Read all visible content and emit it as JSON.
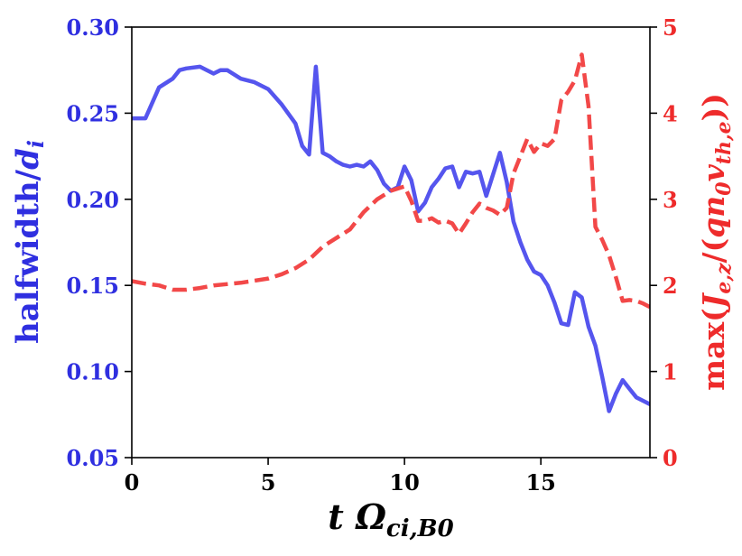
{
  "chart_data": {
    "type": "line",
    "xlabel": "t Ω_ci,B0",
    "ylabel_left": "halfwidth / d_i",
    "ylabel_right": "max(J_e,z / (q n_0 v_th,e))",
    "xlim": [
      0,
      19
    ],
    "ylim_left": [
      0.05,
      0.3
    ],
    "ylim_right": [
      0,
      5
    ],
    "x_ticks": [
      "0",
      "5",
      "10",
      "15"
    ],
    "y_ticks_left": [
      "0.05",
      "0.10",
      "0.15",
      "0.20",
      "0.25",
      "0.30"
    ],
    "y_ticks_right": [
      "0",
      "1",
      "2",
      "3",
      "4",
      "5"
    ],
    "grid": false,
    "series": [
      {
        "axis": "left",
        "color": "#5555ee",
        "style": "solid",
        "x": [
          0.0,
          0.5,
          1.0,
          1.5,
          1.75,
          2.0,
          2.5,
          2.75,
          3.0,
          3.25,
          3.5,
          4.0,
          4.5,
          5.0,
          5.5,
          6.0,
          6.25,
          6.5,
          6.75,
          7.0,
          7.25,
          7.5,
          7.75,
          8.0,
          8.25,
          8.5,
          8.75,
          9.0,
          9.25,
          9.5,
          9.75,
          10.0,
          10.25,
          10.5,
          10.75,
          11.0,
          11.25,
          11.5,
          11.75,
          12.0,
          12.25,
          12.5,
          12.75,
          13.0,
          13.5,
          13.75,
          14.0,
          14.25,
          14.5,
          14.75,
          15.0,
          15.25,
          15.5,
          15.75,
          16.0,
          16.25,
          16.5,
          16.75,
          17.0,
          17.25,
          17.5,
          17.75,
          18.0,
          18.25,
          18.5,
          19.0
        ],
        "y": [
          0.247,
          0.247,
          0.265,
          0.27,
          0.275,
          0.276,
          0.277,
          0.275,
          0.273,
          0.275,
          0.275,
          0.27,
          0.268,
          0.264,
          0.255,
          0.244,
          0.231,
          0.226,
          0.277,
          0.227,
          0.225,
          0.222,
          0.22,
          0.219,
          0.22,
          0.219,
          0.222,
          0.217,
          0.209,
          0.205,
          0.207,
          0.219,
          0.211,
          0.193,
          0.198,
          0.207,
          0.212,
          0.218,
          0.219,
          0.207,
          0.216,
          0.215,
          0.216,
          0.202,
          0.227,
          0.21,
          0.187,
          0.175,
          0.165,
          0.158,
          0.156,
          0.15,
          0.14,
          0.128,
          0.127,
          0.146,
          0.143,
          0.126,
          0.115,
          0.097,
          0.077,
          0.087,
          0.095,
          0.09,
          0.085,
          0.081
        ]
      },
      {
        "axis": "right",
        "color": "#f24848",
        "style": "dashed",
        "x": [
          0.0,
          0.5,
          1.0,
          1.5,
          2.0,
          2.5,
          3.0,
          4.0,
          5.0,
          5.5,
          6.0,
          6.5,
          7.0,
          7.5,
          8.0,
          8.5,
          9.0,
          9.5,
          10.0,
          10.25,
          10.5,
          10.75,
          11.0,
          11.25,
          11.5,
          11.75,
          12.0,
          12.25,
          12.5,
          12.75,
          13.0,
          13.25,
          13.5,
          13.75,
          14.0,
          14.25,
          14.5,
          14.75,
          15.0,
          15.25,
          15.5,
          15.75,
          16.0,
          16.25,
          16.5,
          16.75,
          17.0,
          17.25,
          17.5,
          17.75,
          18.0,
          18.25,
          18.5,
          18.75,
          19.0
        ],
        "y": [
          2.05,
          2.02,
          2.0,
          1.95,
          1.95,
          1.97,
          2.0,
          2.03,
          2.08,
          2.13,
          2.2,
          2.3,
          2.45,
          2.55,
          2.65,
          2.85,
          3.0,
          3.1,
          3.15,
          2.98,
          2.75,
          2.75,
          2.78,
          2.73,
          2.75,
          2.72,
          2.6,
          2.72,
          2.85,
          2.95,
          2.9,
          2.87,
          2.82,
          2.9,
          3.3,
          3.5,
          3.7,
          3.55,
          3.65,
          3.62,
          3.7,
          4.15,
          4.25,
          4.38,
          4.68,
          4.08,
          2.68,
          2.53,
          2.35,
          2.1,
          1.82,
          1.83,
          1.82,
          1.79,
          1.75
        ]
      }
    ]
  }
}
